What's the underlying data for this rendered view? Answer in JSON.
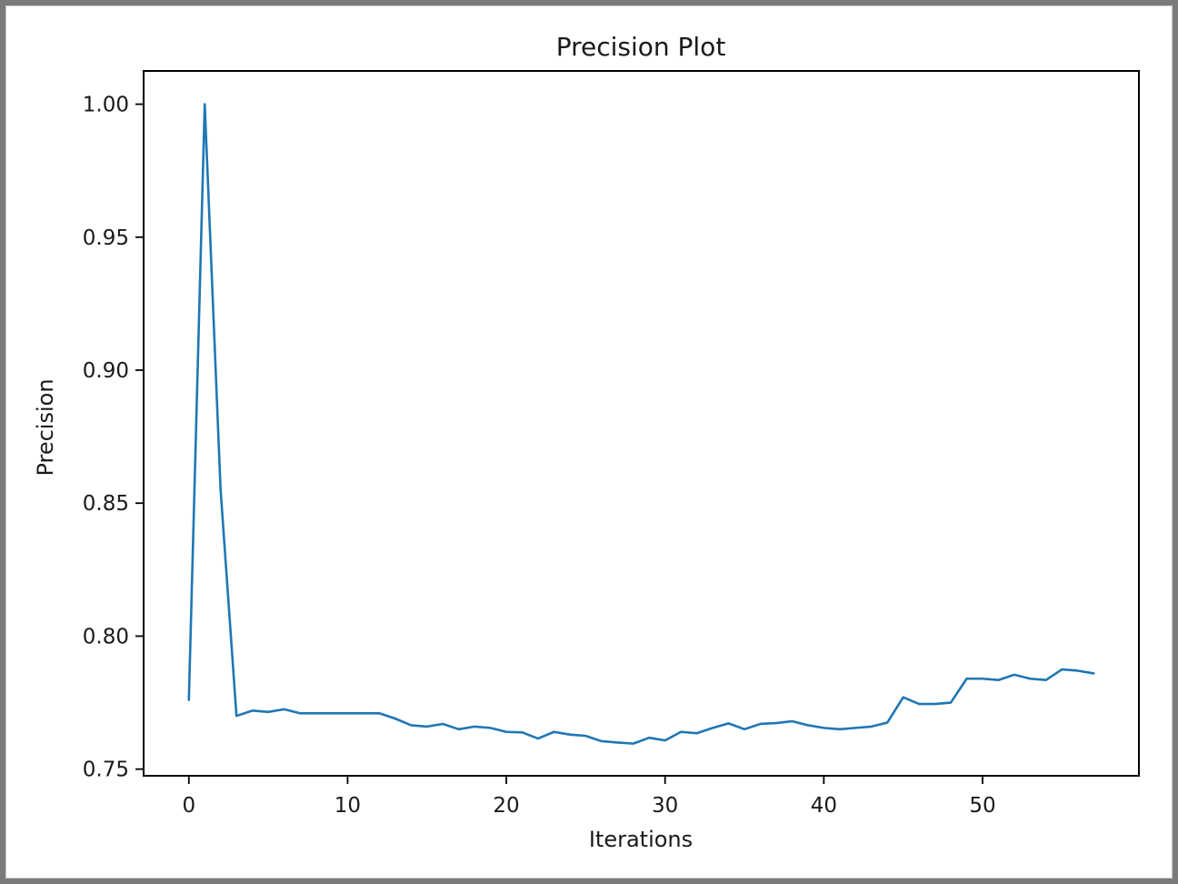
{
  "chart_data": {
    "type": "line",
    "title": "Precision Plot",
    "xlabel": "Iterations",
    "ylabel": "Precision",
    "xlim": [
      -2.85,
      59.85
    ],
    "ylim": [
      0.7475,
      1.0125
    ],
    "xticks": [
      0,
      10,
      20,
      30,
      40,
      50
    ],
    "xtick_labels": [
      "0",
      "10",
      "20",
      "30",
      "40",
      "50"
    ],
    "yticks": [
      0.75,
      0.8,
      0.85,
      0.9,
      0.95,
      1.0
    ],
    "ytick_labels": [
      "0.75",
      "0.80",
      "0.85",
      "0.90",
      "0.95",
      "1.00"
    ],
    "grid": false,
    "line_color": "#1f77b4",
    "series": [
      {
        "x": [
          0,
          1,
          2,
          3,
          4,
          5,
          6,
          7,
          8,
          9,
          10,
          11,
          12,
          13,
          14,
          15,
          16,
          17,
          18,
          19,
          20,
          21,
          22,
          23,
          24,
          25,
          26,
          27,
          28,
          29,
          30,
          31,
          32,
          33,
          34,
          35,
          36,
          37,
          38,
          39,
          40,
          41,
          42,
          43,
          44,
          45,
          46,
          47,
          48,
          49,
          50,
          51,
          52,
          53,
          54,
          55,
          56,
          57
        ],
        "values": [
          0.776,
          1.0,
          0.855,
          0.77,
          0.772,
          0.7715,
          0.7725,
          0.771,
          0.771,
          0.771,
          0.771,
          0.771,
          0.771,
          0.769,
          0.7665,
          0.766,
          0.767,
          0.765,
          0.766,
          0.7655,
          0.764,
          0.7638,
          0.7615,
          0.764,
          0.763,
          0.7625,
          0.7605,
          0.76,
          0.7596,
          0.7618,
          0.7608,
          0.764,
          0.7635,
          0.7655,
          0.7672,
          0.765,
          0.767,
          0.7673,
          0.768,
          0.7665,
          0.7655,
          0.765,
          0.7655,
          0.766,
          0.7675,
          0.777,
          0.7745,
          0.7745,
          0.775,
          0.784,
          0.784,
          0.7835,
          0.7855,
          0.784,
          0.7835,
          0.7875,
          0.787,
          0.786
        ]
      }
    ]
  }
}
